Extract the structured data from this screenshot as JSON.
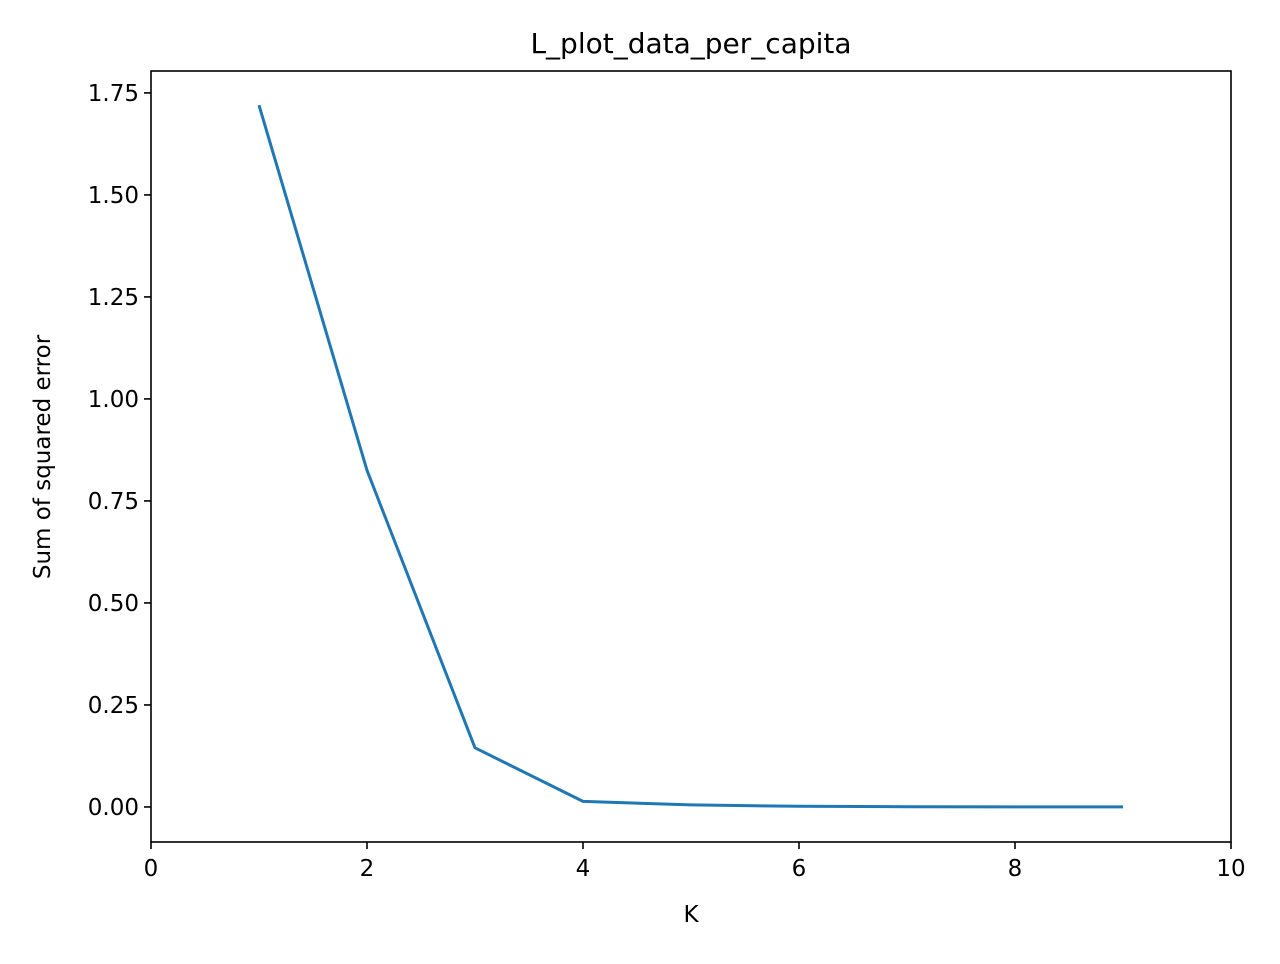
{
  "chart_data": {
    "type": "line",
    "title": "L_plot_data_per_capita",
    "xlabel": "K",
    "ylabel": "Sum of squared error",
    "xlim": [
      0,
      10
    ],
    "ylim": [
      -0.0859,
      1.8037
    ],
    "xticks": [
      0,
      2,
      4,
      6,
      8,
      10
    ],
    "xtick_labels": [
      "0",
      "2",
      "4",
      "6",
      "8",
      "10"
    ],
    "yticks": [
      0,
      0.25,
      0.5,
      0.75,
      1.0,
      1.25,
      1.5,
      1.75
    ],
    "ytick_labels": [
      "0.00",
      "0.25",
      "0.50",
      "0.75",
      "1.00",
      "1.25",
      "1.50",
      "1.75"
    ],
    "grid": false,
    "series": [
      {
        "color": "#1f77b4",
        "x": [
          1,
          2,
          3,
          4,
          5,
          6,
          7,
          8,
          9
        ],
        "y": [
          1.72,
          0.825,
          0.145,
          0.0135,
          0.005,
          0.0015,
          0.0005,
          0.0002,
          0.0001
        ]
      }
    ]
  }
}
